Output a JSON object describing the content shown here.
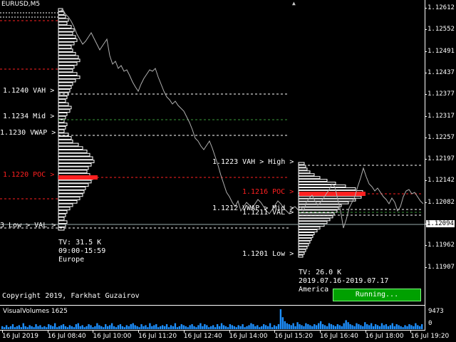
{
  "symbol": "EURUSD,M5",
  "price_axis": {
    "ticks": [
      "1.12612",
      "1.12552",
      "1.12491",
      "1.12437",
      "1.12377",
      "1.12317",
      "1.12257",
      "1.12197",
      "1.12142",
      "1.12082",
      "1.12022",
      "1.11962",
      "1.11907"
    ],
    "current_price": "1.12094"
  },
  "europe_profile": {
    "labels": {
      "vah": "1.1240  VAH  >",
      "mid": "1.1234  Mid  >",
      "vwap": "1.1230  VWAP  >",
      "poc": "1.1220  POC  >",
      "low": "3  Low  >  VAL  >"
    },
    "tv": "TV: 31.5 K",
    "time": "09:00-15:59",
    "session": "Europe"
  },
  "america_profile": {
    "labels": {
      "high": "1.1223  VAH  >  High  >",
      "poc": "1.1216  POC  >",
      "vwap": "1.1212  VWAP  >  Mid  >",
      "val": "1.1211  VAL  >",
      "low": "1.1201  Low  >"
    },
    "tv": "TV: 26.0 K",
    "date": "2019.07.16-2019.07.17",
    "session": "America"
  },
  "copyright": "Copyright 2019, Farkhat Guzairov",
  "running_button": "Running...",
  "volumes": {
    "title": "VisualVolumes 1625",
    "max": "9473",
    "min": "0",
    "bars": [
      3,
      2,
      4,
      2,
      3,
      5,
      2,
      3,
      4,
      2,
      6,
      3,
      2,
      4,
      3,
      2,
      5,
      3,
      4,
      2,
      3,
      2,
      5,
      4,
      3,
      6,
      2,
      3,
      4,
      5,
      3,
      2,
      4,
      3,
      2,
      5,
      6,
      3,
      4,
      2,
      3,
      5,
      4,
      2,
      3,
      6,
      4,
      3,
      2,
      5,
      3,
      4,
      6,
      3,
      2,
      4,
      5,
      3,
      2,
      4,
      3,
      5,
      6,
      4,
      3,
      2,
      5,
      3,
      4,
      2,
      6,
      3,
      4,
      5,
      2,
      3,
      4,
      3,
      5,
      2,
      4,
      3,
      6,
      2,
      3,
      5,
      4,
      3,
      2,
      4,
      5,
      3,
      2,
      4,
      6,
      3,
      5,
      4,
      2,
      3,
      4,
      2,
      5,
      3,
      6,
      4,
      3,
      2,
      5,
      4,
      3,
      2,
      4,
      3,
      5,
      2,
      3,
      4,
      6,
      5,
      3,
      4,
      2,
      3,
      5,
      4,
      3,
      6,
      2,
      4,
      3,
      5,
      20,
      12,
      8,
      6,
      5,
      4,
      6,
      3,
      7,
      5,
      4,
      3,
      6,
      5,
      4,
      3,
      5,
      4,
      6,
      8,
      5,
      4,
      3,
      6,
      5,
      4,
      3,
      5,
      4,
      3,
      6,
      9,
      7,
      5,
      4,
      3,
      6,
      5,
      4,
      3,
      7,
      5,
      4,
      6,
      3,
      5,
      4,
      3,
      6,
      4,
      5,
      3,
      4,
      6,
      3,
      5,
      4,
      3,
      2,
      4,
      3,
      5,
      4,
      3,
      6,
      4,
      3,
      5
    ]
  },
  "time_axis": [
    "16 Jul 2019",
    "16 Jul 08:40",
    "16 Jul 10:00",
    "16 Jul 11:20",
    "16 Jul 12:40",
    "16 Jul 14:00",
    "16 Jul 15:20",
    "16 Jul 16:40",
    "16 Jul 18:00",
    "16 Jul 19:20"
  ]
}
